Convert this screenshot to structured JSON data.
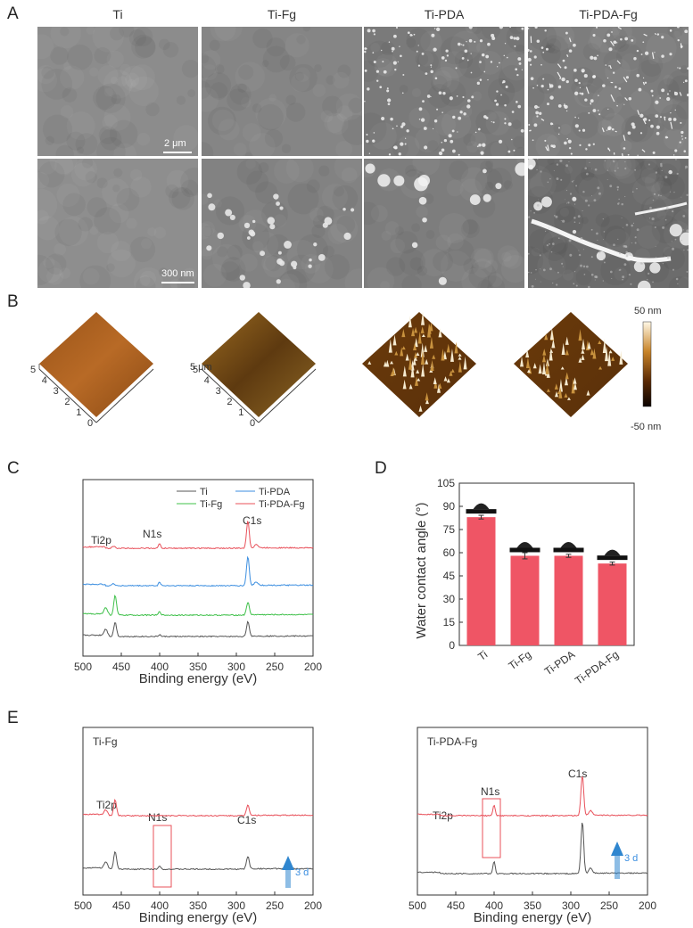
{
  "panels": {
    "A": "A",
    "B": "B",
    "C": "C",
    "D": "D",
    "E": "E"
  },
  "sample_titles": [
    "Ti",
    "Ti-Fg",
    "Ti-PDA",
    "Ti-PDA-Fg"
  ],
  "sem": {
    "scale_top": "2 μm",
    "scale_bottom": "300 nm"
  },
  "afm": {
    "colorbar_max": "50 nm",
    "colorbar_min": "-50 nm",
    "axis_unit": "5 μm",
    "ticks": [
      "0",
      "1",
      "2",
      "3",
      "4",
      "5"
    ],
    "colors": {
      "low": "#1a0a00",
      "mid": "#8a4a10",
      "high": "#fff6e0"
    }
  },
  "chart_data": [
    {
      "id": "C",
      "type": "line",
      "xlabel": "Binding energy (eV)",
      "xlim": [
        500,
        200
      ],
      "xticks": [
        500,
        450,
        400,
        350,
        300,
        250,
        200
      ],
      "legend": [
        "Ti",
        "Ti-PDA",
        "Ti-Fg",
        "Ti-PDA-Fg"
      ],
      "peak_labels": [
        "Ti2p",
        "N1s",
        "C1s"
      ],
      "series_colors": {
        "Ti": "#555555",
        "Ti-Fg": "#3fc04a",
        "Ti-PDA": "#3b8ee0",
        "Ti-PDA-Fg": "#e8505a"
      }
    },
    {
      "id": "D",
      "type": "bar",
      "ylabel": "Water contact angle (°)",
      "ylim": [
        0,
        105
      ],
      "yticks": [
        0,
        15,
        30,
        45,
        60,
        75,
        90,
        105
      ],
      "categories": [
        "Ti",
        "Ti-Fg",
        "Ti-PDA",
        "Ti-PDA-Fg"
      ],
      "values": [
        83,
        58,
        58,
        53
      ],
      "errors": [
        1.2,
        2,
        1,
        1
      ],
      "bar_color": "#ef5565"
    },
    {
      "id": "E1",
      "type": "line",
      "title": "Ti-Fg",
      "xlabel": "Binding energy (eV)",
      "xlim": [
        500,
        200
      ],
      "xticks": [
        500,
        450,
        400,
        350,
        300,
        250,
        200
      ],
      "peak_labels": [
        "Ti2p",
        "N1s",
        "C1s"
      ],
      "arrow_label": "3 d"
    },
    {
      "id": "E2",
      "type": "line",
      "title": "Ti-PDA-Fg",
      "xlabel": "Binding energy (eV)",
      "xlim": [
        500,
        200
      ],
      "xticks": [
        500,
        450,
        400,
        350,
        300,
        250,
        200
      ],
      "peak_labels": [
        "Ti2p",
        "N1s",
        "C1s"
      ],
      "arrow_label": "3 d"
    }
  ]
}
